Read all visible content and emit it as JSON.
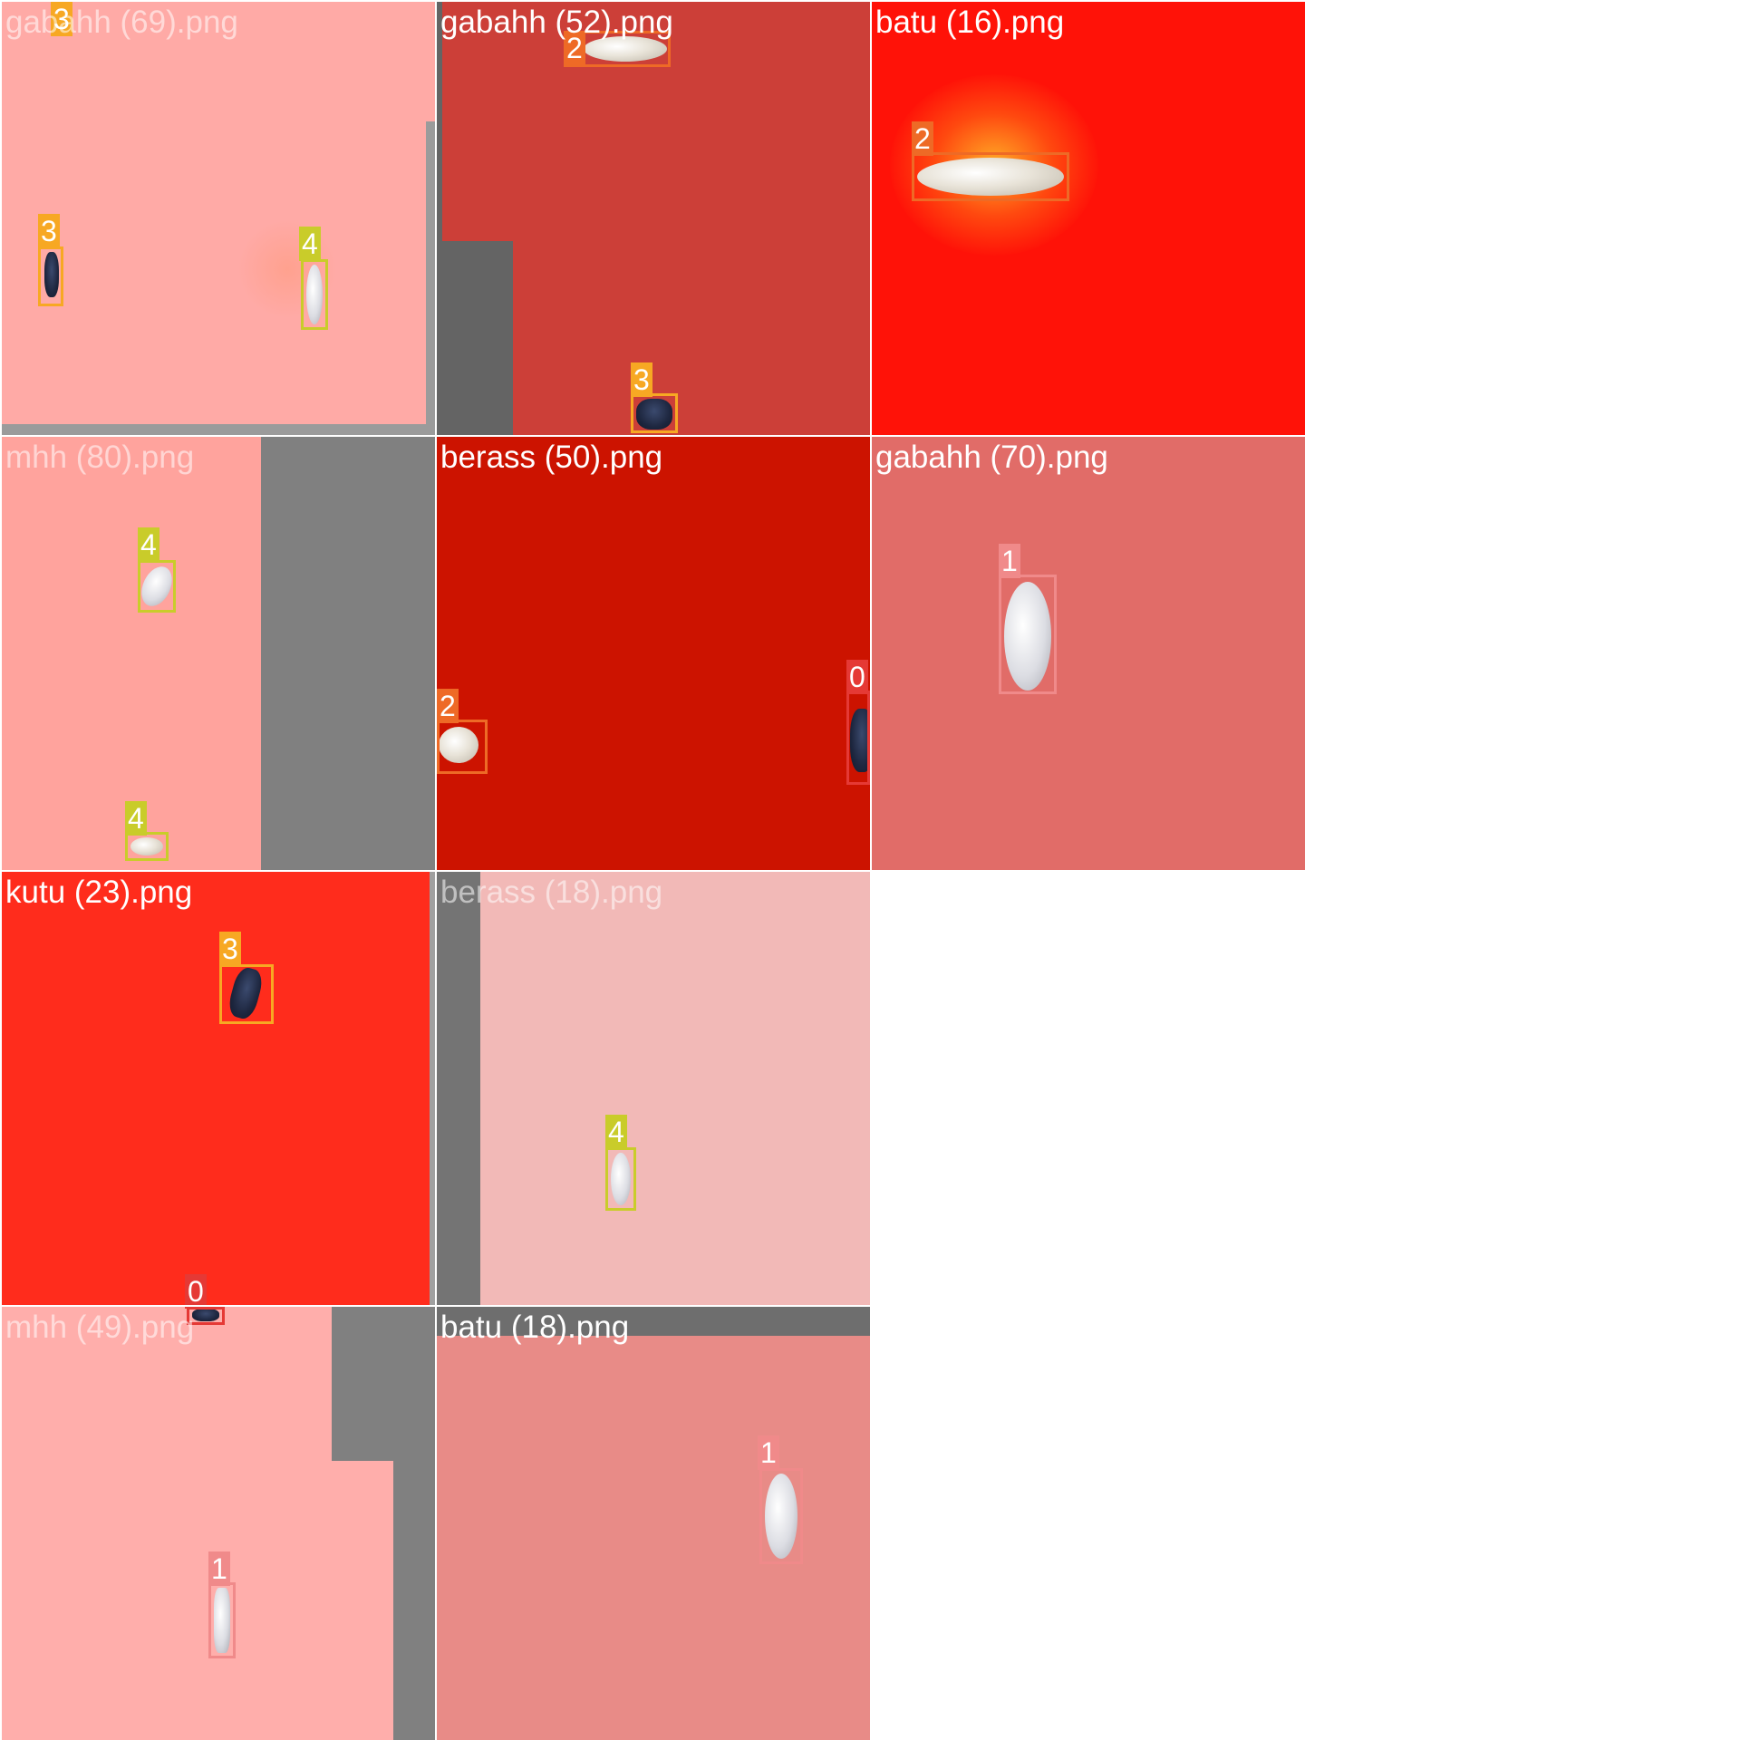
{
  "colors": {
    "class_0": "#e53935",
    "class_1": "#f08a8a",
    "class_2": "#ee6a26",
    "class_3": "#f7a823",
    "class_4": "#c9cc2a"
  },
  "tiles": [
    {
      "title": "gabahh (69).png",
      "labels": [
        "3",
        "3",
        "4"
      ]
    },
    {
      "title": "gabahh (52).png",
      "labels": [
        "2",
        "3"
      ]
    },
    {
      "title": "batu (16).png",
      "labels": [
        "2"
      ]
    },
    {
      "title": "mhh (80).png",
      "labels": [
        "4",
        "4"
      ]
    },
    {
      "title": "berass (50).png",
      "labels": [
        "2",
        "0"
      ]
    },
    {
      "title": "gabahh (70).png",
      "labels": [
        "1"
      ]
    },
    {
      "title": "kutu (23).png",
      "labels": [
        "3",
        "0"
      ]
    },
    {
      "title": "berass (18).png",
      "labels": [
        "4"
      ]
    },
    {
      "title": "mhh (49).png",
      "labels": [
        "1"
      ]
    },
    {
      "title": "batu (18).png",
      "labels": [
        "1"
      ]
    }
  ]
}
